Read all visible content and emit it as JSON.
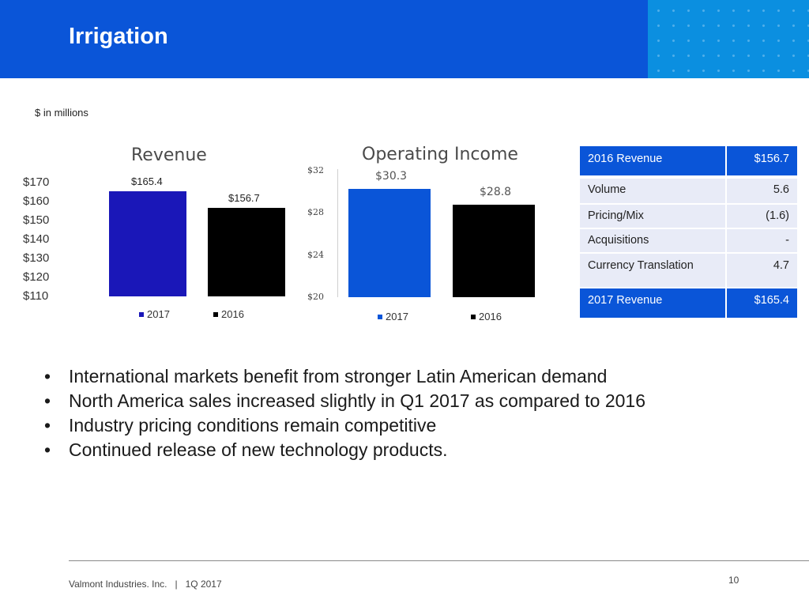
{
  "header": {
    "title": "Irrigation"
  },
  "units_note": "$ in millions",
  "revenue_chart": {
    "title": "Revenue"
  },
  "income_chart": {
    "title": "Operating Income"
  },
  "chart_data": [
    {
      "type": "bar",
      "title": "Revenue",
      "categories": [
        "2017",
        "2016"
      ],
      "values": [
        165.4,
        156.7
      ],
      "value_labels": [
        "$165.4",
        "$156.7"
      ],
      "colors": [
        "#1a17b8",
        "#000000"
      ],
      "yticks": [
        "$170",
        "$160",
        "$150",
        "$140",
        "$130",
        "$120",
        "$110"
      ],
      "ylim": [
        110,
        170
      ],
      "legend": [
        "2017",
        "2016"
      ],
      "xlabel": "",
      "ylabel": ""
    },
    {
      "type": "bar",
      "title": "Operating Income",
      "categories": [
        "2017",
        "2016"
      ],
      "values": [
        30.3,
        28.8
      ],
      "value_labels": [
        "$30.3",
        "$28.8"
      ],
      "colors": [
        "#0a55d8",
        "#000000"
      ],
      "yticks": [
        "$32",
        "$28",
        "$24",
        "$20"
      ],
      "ylim": [
        20,
        32
      ],
      "legend": [
        "2017",
        "2016"
      ],
      "xlabel": "",
      "ylabel": ""
    }
  ],
  "bridge": {
    "start": {
      "label": "2016 Revenue",
      "value": "$156.7"
    },
    "items": [
      {
        "label": "Volume",
        "value": "5.6"
      },
      {
        "label": "Pricing/Mix",
        "value": "(1.6)"
      },
      {
        "label": "Acquisitions",
        "value": "-"
      },
      {
        "label": "Currency Translation",
        "value": "4.7"
      }
    ],
    "end": {
      "label": "2017 Revenue",
      "value": "$165.4"
    }
  },
  "bullets": [
    "International markets benefit from stronger Latin American demand",
    "North America sales increased slightly in Q1 2017 as compared to 2016",
    "Industry pricing conditions remain competitive",
    "Continued release of new technology products."
  ],
  "footer": {
    "text": "Valmont Industries. Inc.   |   1Q 2017",
    "page_number": "10"
  }
}
